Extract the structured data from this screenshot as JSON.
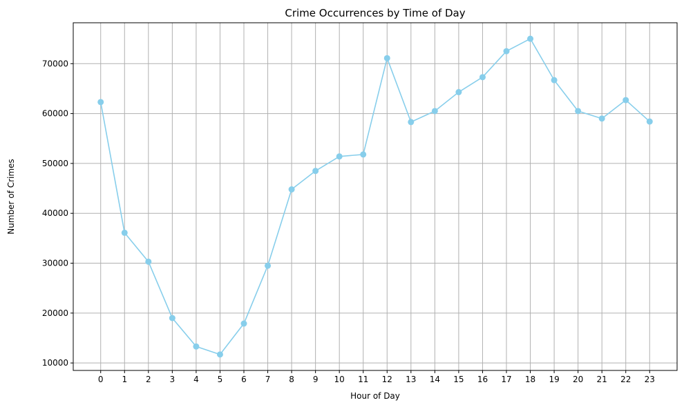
{
  "chart_data": {
    "type": "line",
    "title": "Crime Occurrences by Time of Day",
    "xlabel": "Hour of Day",
    "ylabel": "Number of Crimes",
    "x": [
      0,
      1,
      2,
      3,
      4,
      5,
      6,
      7,
      8,
      9,
      10,
      11,
      12,
      13,
      14,
      15,
      16,
      17,
      18,
      19,
      20,
      21,
      22,
      23
    ],
    "x_tick_labels": [
      "0",
      "1",
      "2",
      "3",
      "4",
      "5",
      "6",
      "7",
      "8",
      "9",
      "10",
      "11",
      "12",
      "13",
      "14",
      "15",
      "16",
      "17",
      "18",
      "19",
      "20",
      "21",
      "22",
      "23"
    ],
    "y_ticks": [
      10000,
      20000,
      30000,
      40000,
      50000,
      60000,
      70000
    ],
    "y_tick_labels": [
      "10000",
      "20000",
      "30000",
      "40000",
      "50000",
      "60000",
      "70000"
    ],
    "xlim": [
      -1.15,
      24.15
    ],
    "ylim": [
      8500,
      78200
    ],
    "grid": true,
    "legend": false,
    "color": "#87ceeb",
    "marker": "circle",
    "series": [
      {
        "values": [
          62300,
          36100,
          30300,
          19000,
          13300,
          11700,
          17900,
          29500,
          44800,
          48500,
          51400,
          51800,
          71100,
          58300,
          60500,
          64300,
          67300,
          72500,
          75000,
          66700,
          60500,
          59000,
          62700,
          58400
        ]
      }
    ]
  }
}
